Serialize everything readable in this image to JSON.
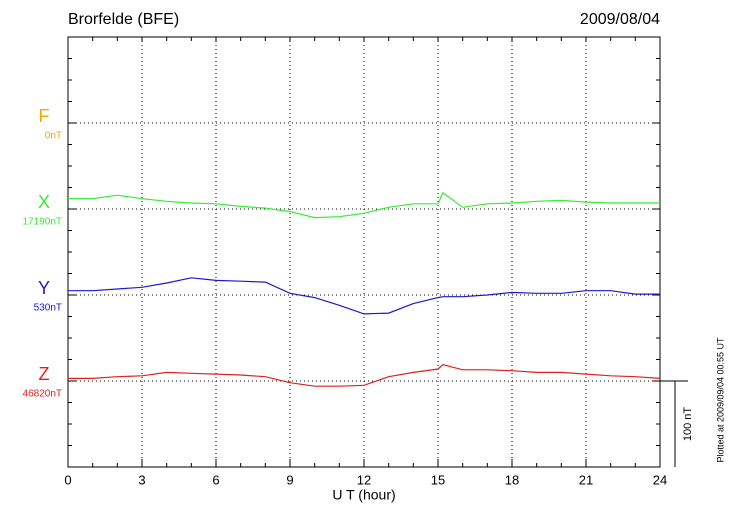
{
  "chart_data": {
    "type": "line",
    "title": "Brorfelde (BFE)",
    "date": "2009/08/04",
    "xlabel": "U T (hour)",
    "footnote": "Plotted at 2009/09/04 00:55 UT",
    "scale": {
      "value": 100,
      "label": "100 nT"
    },
    "xlim": [
      0,
      24
    ],
    "xticks": [
      0,
      3,
      6,
      9,
      12,
      15,
      18,
      21,
      24
    ],
    "x": [
      0,
      1,
      2,
      3,
      4,
      5,
      6,
      7,
      8,
      9,
      10,
      11,
      12,
      13,
      14,
      15,
      15.2,
      16,
      17,
      18,
      19,
      20,
      21,
      22,
      23,
      24
    ],
    "series": [
      {
        "name": "F",
        "color": "#f5a800",
        "baseline": {
          "value": 0,
          "label": "0nT"
        },
        "values": [
          null,
          null,
          null,
          null,
          null,
          null,
          null,
          null,
          null,
          null,
          null,
          null,
          null,
          null,
          null,
          null,
          null,
          null,
          null,
          null,
          null,
          null,
          null,
          null,
          null,
          null
        ]
      },
      {
        "name": "X",
        "color": "#33ee33",
        "baseline": {
          "value": 17190,
          "label": "17190nT"
        },
        "values": [
          12,
          12,
          16,
          12,
          9,
          7,
          6,
          3,
          1,
          -3,
          -10,
          -9,
          -5,
          2,
          6,
          6,
          19,
          2,
          6,
          7,
          9,
          10,
          8,
          7,
          7,
          7
        ]
      },
      {
        "name": "Y",
        "color": "#1a1acc",
        "baseline": {
          "value": 530,
          "label": "530nT"
        },
        "values": [
          5,
          5,
          7,
          9,
          14,
          20,
          17,
          16,
          15,
          2,
          -3,
          -12,
          -22,
          -21,
          -10,
          -3,
          -2,
          -2,
          0,
          3,
          2,
          2,
          5,
          5,
          1,
          1
        ]
      },
      {
        "name": "Z",
        "color": "#dd2222",
        "baseline": {
          "value": 46820,
          "label": "46820nT"
        },
        "values": [
          3,
          3,
          5,
          6,
          10,
          9,
          8,
          7,
          5,
          -2,
          -6,
          -6,
          -5,
          5,
          10,
          14,
          19,
          13,
          13,
          12,
          10,
          10,
          8,
          6,
          5,
          3
        ]
      }
    ]
  }
}
